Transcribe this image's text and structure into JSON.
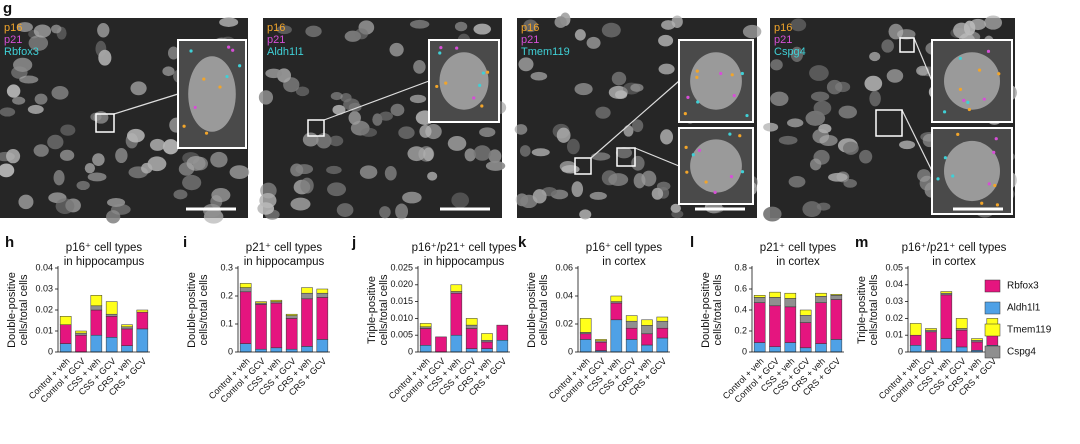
{
  "panel_label": "g",
  "marker_colors": [
    "#f2a52a",
    "#d64fd6",
    "#3fd0d6"
  ],
  "images": [
    {
      "markers": [
        "p16",
        "p21",
        "Rbfox3"
      ]
    },
    {
      "markers": [
        "p16",
        "p21",
        "Aldh1l1"
      ]
    },
    {
      "markers": [
        "p16",
        "p21",
        "Tmem119"
      ]
    },
    {
      "markers": [
        "p16",
        "p21",
        "Cspg4"
      ]
    }
  ],
  "legend": [
    {
      "name": "Rbfox3",
      "color": "#e5157f"
    },
    {
      "name": "Aldh1l1",
      "color": "#4fa1e6"
    },
    {
      "name": "Tmem119",
      "color": "#ffff1a"
    },
    {
      "name": "Cspg4",
      "color": "#8f8f8f"
    }
  ],
  "chart_data": [
    {
      "type": "bar",
      "stacked": true,
      "label": "h",
      "title": [
        "p16⁺ cell types",
        "in hippocampus"
      ],
      "y_label": [
        "Double-positive",
        "cells/total cells"
      ],
      "categories": [
        "Control + veh",
        "Control + GCV",
        "CSS + veh",
        "CSS + GCV",
        "CRS + veh",
        "CRS + GCV"
      ],
      "series": [
        {
          "values": [
            0.009,
            0.008,
            0.012,
            0.01,
            0.008,
            0.008
          ]
        },
        {
          "values": [
            0.004,
            0,
            0.008,
            0.007,
            0.003,
            0.011
          ]
        },
        {
          "values": [
            0.004,
            0.001,
            0.005,
            0.006,
            0.001,
            0.001
          ]
        },
        {
          "values": [
            0,
            0.001,
            0.002,
            0.001,
            0.001,
            0
          ]
        }
      ],
      "ylim": [
        0,
        0.04
      ],
      "yticks": [
        0,
        0.01,
        0.02,
        0.03,
        0.04
      ]
    },
    {
      "type": "bar",
      "stacked": true,
      "label": "i",
      "title": [
        "p21⁺ cell types",
        "in hippocampus"
      ],
      "y_label": [
        "Double-positive",
        "cells/total cells"
      ],
      "categories": [
        "Control + veh",
        "Control + GCV",
        "CSS + veh",
        "CSS + GCV",
        "CRS + veh",
        "CRS + GCV"
      ],
      "series": [
        {
          "values": [
            0.185,
            0.16,
            0.16,
            0.11,
            0.17,
            0.15
          ]
        },
        {
          "values": [
            0.03,
            0.01,
            0.015,
            0.01,
            0.02,
            0.045
          ]
        },
        {
          "values": [
            0.015,
            0.005,
            0.005,
            0.005,
            0.02,
            0.015
          ]
        },
        {
          "values": [
            0.015,
            0.005,
            0.005,
            0.01,
            0.02,
            0.015
          ]
        }
      ],
      "ylim": [
        0,
        0.3
      ],
      "yticks": [
        0,
        0.1,
        0.2,
        0.3
      ]
    },
    {
      "type": "bar",
      "stacked": true,
      "label": "j",
      "title": [
        "p16⁺/p21⁺ cell types",
        "in hippocampus"
      ],
      "y_label": [
        "Triple-positive",
        "cells/total cells"
      ],
      "categories": [
        "Control + veh",
        "Control + GCV",
        "CSS + veh",
        "CSS + GCV",
        "CRS + veh",
        "CRS + GCV"
      ],
      "series": [
        {
          "values": [
            0.005,
            0.0045,
            0.0125,
            0.006,
            0.002,
            0.0045
          ]
        },
        {
          "values": [
            0.002,
            0,
            0.005,
            0.001,
            0.001,
            0.0035
          ]
        },
        {
          "values": [
            0.001,
            0,
            0.002,
            0.002,
            0.002,
            0
          ]
        },
        {
          "values": [
            0.0005,
            0,
            0.0005,
            0.001,
            0.0005,
            0
          ]
        }
      ],
      "ylim": [
        0,
        0.025
      ],
      "yticks": [
        0,
        0.005,
        {
          "value": 0.01,
          "label": "0.010"
        },
        0.015,
        {
          "value": 0.02,
          "label": "0.020"
        },
        0.025
      ]
    },
    {
      "type": "bar",
      "stacked": true,
      "label": "k",
      "title": [
        "p16⁺ cell types",
        "in cortex"
      ],
      "y_label": [
        "Double-positive",
        "cells/total cells"
      ],
      "categories": [
        "Control + veh",
        "Control + GCV",
        "CSS + veh",
        "CSS + GCV",
        "CRS + veh",
        "CRS + GCV"
      ],
      "series": [
        {
          "values": [
            0.004,
            0.006,
            0.012,
            0.008,
            0.008,
            0.007
          ]
        },
        {
          "values": [
            0.009,
            0.001,
            0.023,
            0.009,
            0.005,
            0.01
          ]
        },
        {
          "values": [
            0.01,
            0.001,
            0.004,
            0.004,
            0.004,
            0.003
          ]
        },
        {
          "values": [
            0.001,
            0.001,
            0.001,
            0.005,
            0.006,
            0.005
          ]
        }
      ],
      "ylim": [
        0,
        0.06
      ],
      "yticks": [
        0,
        0.02,
        0.04,
        0.06
      ]
    },
    {
      "type": "bar",
      "stacked": true,
      "label": "l",
      "title": [
        "p21⁺ cell types",
        "in cortex"
      ],
      "y_label": [
        "Double-positive",
        "cells/total cells"
      ],
      "categories": [
        "Control + veh",
        "Control + GCV",
        "CSS + veh",
        "CSS + GCV",
        "CRS + veh",
        "CRS + GCV"
      ],
      "series": [
        {
          "values": [
            0.38,
            0.39,
            0.34,
            0.24,
            0.39,
            0.38
          ]
        },
        {
          "values": [
            0.09,
            0.05,
            0.09,
            0.04,
            0.08,
            0.12
          ]
        },
        {
          "values": [
            0.02,
            0.05,
            0.05,
            0.05,
            0.03,
            0.01
          ]
        },
        {
          "values": [
            0.05,
            0.08,
            0.08,
            0.07,
            0.06,
            0.04
          ]
        }
      ],
      "ylim": [
        0,
        0.8
      ],
      "yticks": [
        0,
        0.2,
        0.4,
        0.6,
        0.8
      ]
    },
    {
      "type": "bar",
      "stacked": true,
      "label": "m",
      "title": [
        "p16⁺/p21⁺ cell types",
        "in cortex"
      ],
      "y_label": [
        "Triple-positive",
        "cells/total cells"
      ],
      "categories": [
        "Control + veh",
        "Control + GCV",
        "CSS + veh",
        "CSS + GCV",
        "CRS + veh",
        "CRS + GCV"
      ],
      "series": [
        {
          "values": [
            0.006,
            0.011,
            0.026,
            0.01,
            0.005,
            0.01
          ]
        },
        {
          "values": [
            0.004,
            0.001,
            0.008,
            0.003,
            0.001,
            0.004
          ]
        },
        {
          "values": [
            0.007,
            0.001,
            0.001,
            0.006,
            0.001,
            0.005
          ]
        },
        {
          "values": [
            0,
            0.001,
            0.001,
            0.001,
            0.001,
            0.001
          ]
        }
      ],
      "ylim": [
        0,
        0.05
      ],
      "yticks": [
        0,
        0.01,
        0.02,
        0.03,
        0.04,
        0.05
      ]
    }
  ]
}
